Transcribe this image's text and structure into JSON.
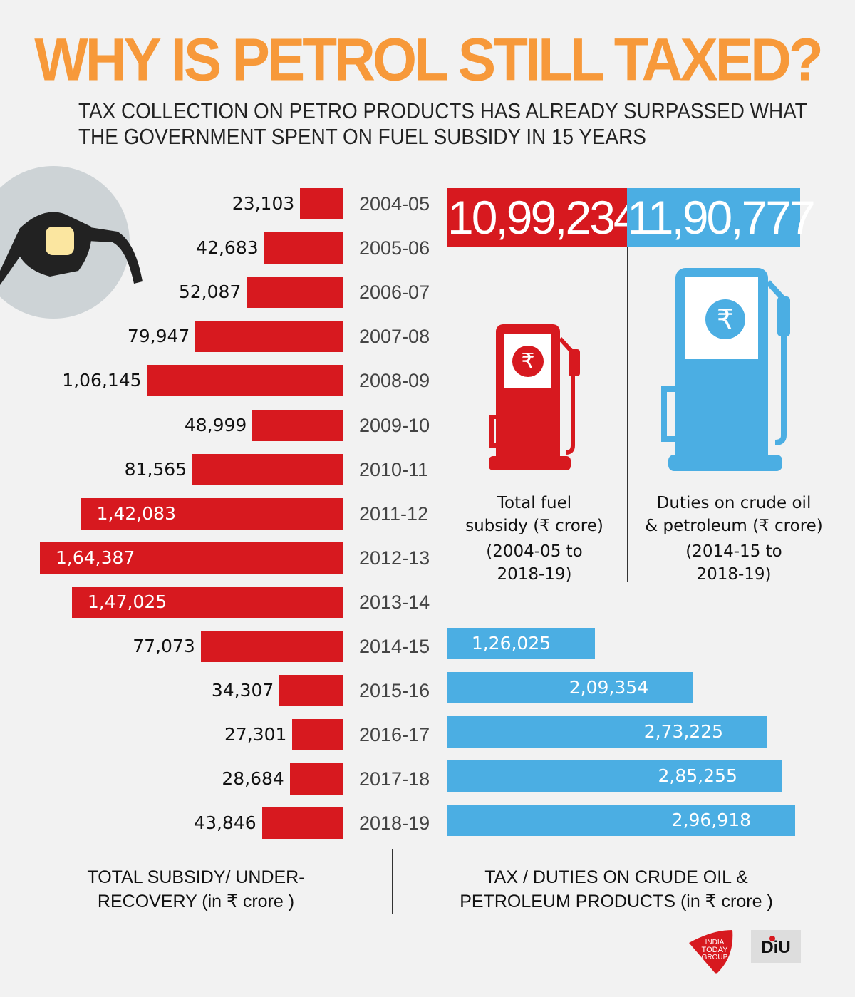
{
  "title": "WHY IS PETROL STILL TAXED?",
  "subtitle": [
    "TAX COLLECTION ON PETRO PRODUCTS HAS ALREADY SURPASSED WHAT",
    "THE GOVERNMENT SPENT ON FUEL SUBSIDY IN 15 YEARS"
  ],
  "colors": {
    "title": "#f7993a",
    "subsidy": "#d7191f",
    "duties": "#4baee3",
    "background": "#f2f2f2"
  },
  "totals": {
    "subsidy": {
      "value": "10,99,234",
      "caption": [
        "Total fuel",
        "subsidy (₹ crore)",
        "(2004-05 to",
        "2018-19)"
      ]
    },
    "duties": {
      "value": "11,90,777",
      "caption": [
        "Duties on crude oil",
        "& petroleum (₹ crore)",
        "(2014-15 to",
        "2018-19)"
      ]
    }
  },
  "footer": {
    "left": [
      "TOTAL SUBSIDY/ UNDER-",
      "RECOVERY (in ₹ crore )"
    ],
    "right": [
      "TAX / DUTIES ON CRUDE OIL &",
      "PETROLEUM PRODUCTS (in ₹ crore )"
    ]
  },
  "logos": [
    "INDIA TODAY GROUP",
    "DIU"
  ],
  "icons": [
    "fuel-nozzle-icon",
    "fuel-pump-icon",
    "rupee-icon"
  ],
  "chart_data": {
    "type": "bar",
    "categories": [
      "2004-05",
      "2005-06",
      "2006-07",
      "2007-08",
      "2008-09",
      "2009-10",
      "2010-11",
      "2011-12",
      "2012-13",
      "2013-14",
      "2014-15",
      "2015-16",
      "2016-17",
      "2017-18",
      "2018-19"
    ],
    "series": [
      {
        "name": "TOTAL SUBSIDY/ UNDER-RECOVERY (in ₹ crore )",
        "values": [
          23103,
          42683,
          52087,
          79947,
          106145,
          48999,
          81565,
          142083,
          164387,
          147025,
          77073,
          34307,
          27301,
          28684,
          43846
        ],
        "labels": [
          "23,103",
          "42,683",
          "52,087",
          "79,947",
          "1,06,145",
          "48,999",
          "81,565",
          "1,42,083",
          "1,64,387",
          "1,47,025",
          "77,073",
          "34,307",
          "27,301",
          "28,684",
          "43,846"
        ]
      },
      {
        "name": "TAX / DUTIES ON CRUDE OIL & PETROLEUM PRODUCTS (in ₹ crore )",
        "values": [
          null,
          null,
          null,
          null,
          null,
          null,
          null,
          null,
          null,
          null,
          126025,
          209354,
          273225,
          285255,
          296918
        ],
        "labels": [
          null,
          null,
          null,
          null,
          null,
          null,
          null,
          null,
          null,
          null,
          "1,26,025",
          "2,09,354",
          "2,73,225",
          "2,85,255",
          "2,96,918"
        ]
      }
    ],
    "orientation": "horizontal",
    "grid": false
  }
}
